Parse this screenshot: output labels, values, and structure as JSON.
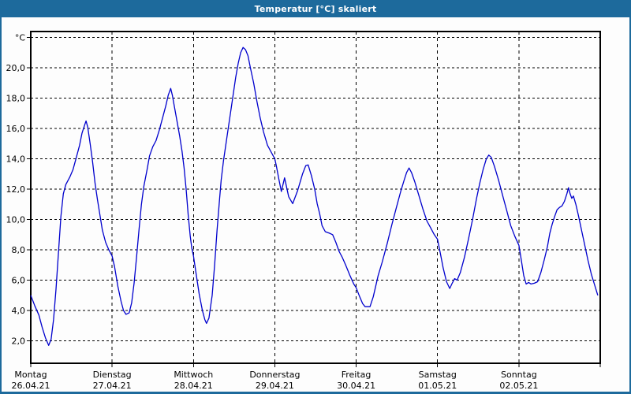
{
  "window": {
    "title": "Temperatur [°C] skaliert"
  },
  "colors": {
    "title_bar_bg": "#1d6a9c",
    "title_text": "#ffffff",
    "window_border": "#1d6a9c",
    "plot_background": "#fdfdfd",
    "grid": "#000000",
    "frame": "#000000",
    "line": "#0000cd",
    "label_text": "#000000"
  },
  "chart_data": {
    "type": "line",
    "title": "Temperatur [°C] skaliert",
    "xlabel": "",
    "ylabel": "°C",
    "unit_label": "°C",
    "grid": true,
    "legend_position": "none",
    "xlim_days": [
      0,
      7
    ],
    "ylim": [
      0.52,
      22.4
    ],
    "y_ticks": [
      {
        "value": 22,
        "label": "°C"
      },
      {
        "value": 20,
        "label": "20,0"
      },
      {
        "value": 18,
        "label": "18,0"
      },
      {
        "value": 16,
        "label": "16,0"
      },
      {
        "value": 14,
        "label": "14,0"
      },
      {
        "value": 12,
        "label": "12,0"
      },
      {
        "value": 10,
        "label": "10,0"
      },
      {
        "value": 8,
        "label": "8,0"
      },
      {
        "value": 6,
        "label": "6,0"
      },
      {
        "value": 4,
        "label": "4,0"
      },
      {
        "value": 2,
        "label": "2,0"
      }
    ],
    "x_ticks": [
      {
        "day": "Montag",
        "date": "26.04.21"
      },
      {
        "day": "Dienstag",
        "date": "27.04.21"
      },
      {
        "day": "Mittwoch",
        "date": "28.04.21"
      },
      {
        "day": "Donnerstag",
        "date": "29.04.21"
      },
      {
        "day": "Freitag",
        "date": "30.04.21"
      },
      {
        "day": "Samstag",
        "date": "01.05.21"
      },
      {
        "day": "Sonntag",
        "date": "02.05.21"
      }
    ],
    "series": [
      {
        "name": "Temperatur",
        "color": "#0000cd",
        "points": [
          [
            0.0,
            5.0
          ],
          [
            0.05,
            4.3
          ],
          [
            0.1,
            3.7
          ],
          [
            0.14,
            2.9
          ],
          [
            0.18,
            2.2
          ],
          [
            0.22,
            1.7
          ],
          [
            0.25,
            2.1
          ],
          [
            0.28,
            3.4
          ],
          [
            0.31,
            5.4
          ],
          [
            0.34,
            7.8
          ],
          [
            0.37,
            10.2
          ],
          [
            0.4,
            11.7
          ],
          [
            0.43,
            12.3
          ],
          [
            0.48,
            12.8
          ],
          [
            0.52,
            13.3
          ],
          [
            0.56,
            14.1
          ],
          [
            0.6,
            14.9
          ],
          [
            0.63,
            15.7
          ],
          [
            0.66,
            16.2
          ],
          [
            0.68,
            16.5
          ],
          [
            0.7,
            16.1
          ],
          [
            0.73,
            15.0
          ],
          [
            0.76,
            13.8
          ],
          [
            0.79,
            12.4
          ],
          [
            0.82,
            11.3
          ],
          [
            0.85,
            10.3
          ],
          [
            0.88,
            9.3
          ],
          [
            0.92,
            8.5
          ],
          [
            0.96,
            8.0
          ],
          [
            1.0,
            7.6
          ],
          [
            1.03,
            6.9
          ],
          [
            1.07,
            5.6
          ],
          [
            1.11,
            4.6
          ],
          [
            1.14,
            4.0
          ],
          [
            1.17,
            3.75
          ],
          [
            1.21,
            3.85
          ],
          [
            1.24,
            4.5
          ],
          [
            1.27,
            5.8
          ],
          [
            1.3,
            7.5
          ],
          [
            1.33,
            9.3
          ],
          [
            1.36,
            11.0
          ],
          [
            1.39,
            12.2
          ],
          [
            1.43,
            13.3
          ],
          [
            1.46,
            14.2
          ],
          [
            1.5,
            14.8
          ],
          [
            1.54,
            15.2
          ],
          [
            1.58,
            15.9
          ],
          [
            1.62,
            16.7
          ],
          [
            1.66,
            17.5
          ],
          [
            1.69,
            18.2
          ],
          [
            1.72,
            18.65
          ],
          [
            1.74,
            18.2
          ],
          [
            1.77,
            17.3
          ],
          [
            1.8,
            16.4
          ],
          [
            1.83,
            15.5
          ],
          [
            1.86,
            14.5
          ],
          [
            1.885,
            13.4
          ],
          [
            1.91,
            12.0
          ],
          [
            1.935,
            10.3
          ],
          [
            1.96,
            8.9
          ],
          [
            1.98,
            8.1
          ],
          [
            2.0,
            7.6
          ],
          [
            2.03,
            6.5
          ],
          [
            2.07,
            5.1
          ],
          [
            2.11,
            4.0
          ],
          [
            2.14,
            3.4
          ],
          [
            2.16,
            3.15
          ],
          [
            2.19,
            3.5
          ],
          [
            2.23,
            5.0
          ],
          [
            2.26,
            7.0
          ],
          [
            2.29,
            9.3
          ],
          [
            2.32,
            11.3
          ],
          [
            2.34,
            12.6
          ],
          [
            2.37,
            13.9
          ],
          [
            2.4,
            15.0
          ],
          [
            2.43,
            16.1
          ],
          [
            2.46,
            17.2
          ],
          [
            2.49,
            18.3
          ],
          [
            2.52,
            19.4
          ],
          [
            2.55,
            20.3
          ],
          [
            2.58,
            21.0
          ],
          [
            2.61,
            21.35
          ],
          [
            2.64,
            21.2
          ],
          [
            2.67,
            20.8
          ],
          [
            2.7,
            20.0
          ],
          [
            2.74,
            19.0
          ],
          [
            2.78,
            17.8
          ],
          [
            2.82,
            16.7
          ],
          [
            2.86,
            15.8
          ],
          [
            2.91,
            14.9
          ],
          [
            2.96,
            14.4
          ],
          [
            3.0,
            14.0
          ],
          [
            3.02,
            13.5
          ],
          [
            3.05,
            12.65
          ],
          [
            3.08,
            11.85
          ],
          [
            3.12,
            12.75
          ],
          [
            3.17,
            11.5
          ],
          [
            3.22,
            11.05
          ],
          [
            3.28,
            11.9
          ],
          [
            3.34,
            13.0
          ],
          [
            3.38,
            13.55
          ],
          [
            3.41,
            13.6
          ],
          [
            3.45,
            12.9
          ],
          [
            3.49,
            12.0
          ],
          [
            3.52,
            11.05
          ],
          [
            3.55,
            10.4
          ],
          [
            3.58,
            9.6
          ],
          [
            3.62,
            9.2
          ],
          [
            3.67,
            9.1
          ],
          [
            3.71,
            9.0
          ],
          [
            3.75,
            8.5
          ],
          [
            3.79,
            7.9
          ],
          [
            3.83,
            7.5
          ],
          [
            3.87,
            7.0
          ],
          [
            3.92,
            6.35
          ],
          [
            3.97,
            5.75
          ],
          [
            4.0,
            5.5
          ],
          [
            4.04,
            4.95
          ],
          [
            4.08,
            4.45
          ],
          [
            4.11,
            4.25
          ],
          [
            4.17,
            4.25
          ],
          [
            4.21,
            4.9
          ],
          [
            4.24,
            5.6
          ],
          [
            4.27,
            6.3
          ],
          [
            4.32,
            7.2
          ],
          [
            4.38,
            8.4
          ],
          [
            4.44,
            9.7
          ],
          [
            4.5,
            10.9
          ],
          [
            4.55,
            11.9
          ],
          [
            4.59,
            12.6
          ],
          [
            4.62,
            13.1
          ],
          [
            4.65,
            13.4
          ],
          [
            4.68,
            13.1
          ],
          [
            4.72,
            12.5
          ],
          [
            4.77,
            11.6
          ],
          [
            4.82,
            10.7
          ],
          [
            4.87,
            9.9
          ],
          [
            4.92,
            9.4
          ],
          [
            4.96,
            9.0
          ],
          [
            5.0,
            8.7
          ],
          [
            5.03,
            7.9
          ],
          [
            5.07,
            6.8
          ],
          [
            5.11,
            5.9
          ],
          [
            5.15,
            5.45
          ],
          [
            5.18,
            5.8
          ],
          [
            5.21,
            6.1
          ],
          [
            5.24,
            6.0
          ],
          [
            5.28,
            6.5
          ],
          [
            5.33,
            7.5
          ],
          [
            5.38,
            8.7
          ],
          [
            5.43,
            10.0
          ],
          [
            5.48,
            11.4
          ],
          [
            5.52,
            12.4
          ],
          [
            5.56,
            13.3
          ],
          [
            5.6,
            14.0
          ],
          [
            5.63,
            14.25
          ],
          [
            5.66,
            14.1
          ],
          [
            5.7,
            13.5
          ],
          [
            5.75,
            12.6
          ],
          [
            5.8,
            11.6
          ],
          [
            5.85,
            10.6
          ],
          [
            5.9,
            9.6
          ],
          [
            5.95,
            8.9
          ],
          [
            6.0,
            8.3
          ],
          [
            6.03,
            7.3
          ],
          [
            6.06,
            6.3
          ],
          [
            6.09,
            5.75
          ],
          [
            6.12,
            5.85
          ],
          [
            6.15,
            5.75
          ],
          [
            6.19,
            5.8
          ],
          [
            6.23,
            5.9
          ],
          [
            6.27,
            6.5
          ],
          [
            6.31,
            7.3
          ],
          [
            6.35,
            8.2
          ],
          [
            6.38,
            9.1
          ],
          [
            6.41,
            9.7
          ],
          [
            6.44,
            10.2
          ],
          [
            6.47,
            10.65
          ],
          [
            6.5,
            10.8
          ],
          [
            6.53,
            10.9
          ],
          [
            6.56,
            11.2
          ],
          [
            6.59,
            11.7
          ],
          [
            6.61,
            12.1
          ],
          [
            6.63,
            11.7
          ],
          [
            6.65,
            11.4
          ],
          [
            6.67,
            11.55
          ],
          [
            6.7,
            11.0
          ],
          [
            6.73,
            10.3
          ],
          [
            6.77,
            9.3
          ],
          [
            6.81,
            8.3
          ],
          [
            6.85,
            7.3
          ],
          [
            6.89,
            6.4
          ],
          [
            6.93,
            5.7
          ],
          [
            6.97,
            5.0
          ]
        ]
      }
    ]
  }
}
